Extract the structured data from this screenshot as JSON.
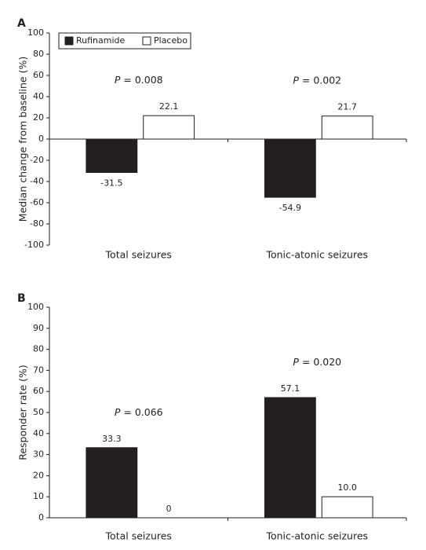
{
  "chart_data": [
    {
      "type": "bar",
      "panel": "A",
      "ylabel": "Median change from baseline (%)",
      "categories": [
        "Total seizures",
        "Tonic-atonic seizures"
      ],
      "series": [
        {
          "name": "Rufinamide",
          "color": "#231f20",
          "values": [
            -31.5,
            -54.9
          ]
        },
        {
          "name": "Placebo",
          "color": "#ffffff",
          "values": [
            22.1,
            21.7
          ]
        }
      ],
      "annotations": [
        "P = 0.008",
        "P = 0.002"
      ],
      "ylim": [
        -100,
        100
      ],
      "yticks": [
        -100,
        -80,
        -60,
        -40,
        -20,
        0,
        20,
        40,
        60,
        80,
        100
      ],
      "legend": "upper left"
    },
    {
      "type": "bar",
      "panel": "B",
      "ylabel": "Responder rate (%)",
      "categories": [
        "Total seizures",
        "Tonic-atonic seizures"
      ],
      "series": [
        {
          "name": "Rufinamide",
          "color": "#231f20",
          "values": [
            33.3,
            57.1
          ]
        },
        {
          "name": "Placebo",
          "color": "#ffffff",
          "values": [
            0,
            10
          ],
          "value_labels": [
            "0",
            "10.0"
          ]
        }
      ],
      "annotations": [
        "P = 0.066",
        "P = 0.020"
      ],
      "ylim": [
        0,
        100
      ],
      "yticks": [
        0,
        10,
        20,
        30,
        40,
        50,
        60,
        70,
        80,
        90,
        100
      ],
      "legend": false
    }
  ]
}
